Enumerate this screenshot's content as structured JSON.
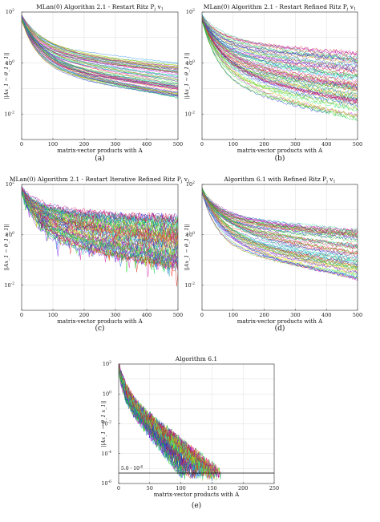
{
  "chart_data": [
    {
      "id": "a",
      "type": "line",
      "title": "MLan(0) Algorithm 2.1 - Restart Ritz P_j v_1",
      "caption": "(a)",
      "xlabel": "matrix-vector products with A",
      "ylabel": "||Ax_1 − θ_1 x_1||",
      "xlim": [
        0,
        500
      ],
      "ylim_log10": [
        -3,
        2
      ],
      "yscale": "log",
      "grid": true,
      "xticks": [
        "0",
        "100",
        "200",
        "300",
        "400",
        "500"
      ],
      "yticks": [
        {
          "exp": 2,
          "label": "10"
        },
        {
          "exp": 0,
          "label": "10"
        },
        {
          "exp": -2,
          "label": "10"
        }
      ],
      "y_start_log10": 1.9,
      "y_end_log10_range": [
        -1.4,
        0.0
      ],
      "noise": 0.02,
      "n_series": 70
    },
    {
      "id": "b",
      "type": "line",
      "title": "MLan(0) Algorithm 2.1 - Restart Refined Ritz P_j v_1",
      "caption": "(b)",
      "xlabel": "matrix-vector products with A",
      "ylabel": "||Ax_1 − θ_1 x_1||",
      "xlim": [
        0,
        500
      ],
      "ylim_log10": [
        -3,
        2
      ],
      "yscale": "log",
      "grid": true,
      "xticks": [
        "0",
        "100",
        "200",
        "300",
        "400",
        "500"
      ],
      "yticks": [
        {
          "exp": 2,
          "label": "10"
        },
        {
          "exp": 0,
          "label": "10"
        },
        {
          "exp": -2,
          "label": "10"
        }
      ],
      "y_start_log10": 1.9,
      "y_end_log10_range": [
        -2.2,
        0.4
      ],
      "noise": 0.07,
      "n_series": 70
    },
    {
      "id": "c",
      "type": "line",
      "title": "MLan(0) Algorithm 2.1 - Restart Iterative Refined Ritz P_j v_1",
      "caption": "(c)",
      "xlabel": "matrix-vector products with A",
      "ylabel": "||Ax_1 − θ_1 x_1||",
      "xlim": [
        0,
        500
      ],
      "ylim_log10": [
        -3,
        2
      ],
      "yscale": "log",
      "grid": true,
      "xticks": [
        "0",
        "100",
        "200",
        "300",
        "400",
        "500"
      ],
      "yticks": [
        {
          "exp": 2,
          "label": "10"
        },
        {
          "exp": 0,
          "label": "10"
        },
        {
          "exp": -2,
          "label": "10"
        }
      ],
      "y_start_log10": 1.9,
      "y_end_log10_range": [
        -1.3,
        0.7
      ],
      "noise": 0.16,
      "n_series": 70
    },
    {
      "id": "d",
      "type": "line",
      "title": "Algorithm 6.1 with Refined Ritz P_j v_1",
      "caption": "(d)",
      "xlabel": "matrix-vector products with A",
      "ylabel": "||Ax_1 − θ_1 x_1||",
      "xlim": [
        0,
        500
      ],
      "ylim_log10": [
        -3,
        2
      ],
      "yscale": "log",
      "grid": true,
      "xticks": [
        "0",
        "100",
        "200",
        "300",
        "400",
        "500"
      ],
      "yticks": [
        {
          "exp": 2,
          "label": "10"
        },
        {
          "exp": 0,
          "label": "10"
        },
        {
          "exp": -2,
          "label": "10"
        }
      ],
      "y_start_log10": 1.9,
      "y_end_log10_range": [
        -1.8,
        0.3
      ],
      "noise": 0.06,
      "n_series": 70
    },
    {
      "id": "e",
      "type": "line",
      "title": "Algorithm 6.1",
      "caption": "(e)",
      "xlabel": "matrix-vector products with A",
      "ylabel": "||Ax_1 − θ_1 x_1||",
      "xlim": [
        0,
        250
      ],
      "ylim_log10": [
        -6,
        2
      ],
      "yscale": "log",
      "grid": true,
      "xticks": [
        "0",
        "50",
        "100",
        "150",
        "200",
        "250"
      ],
      "yticks": [
        {
          "exp": 2,
          "label": "10"
        },
        {
          "exp": 0,
          "label": "10"
        },
        {
          "exp": -2,
          "label": "10"
        },
        {
          "exp": -4,
          "label": "10"
        },
        {
          "exp": -6,
          "label": "10"
        }
      ],
      "threshold": 5e-06,
      "threshold_label": "5.0 · 10",
      "threshold_exp": "-6",
      "end_x_range": [
        100,
        165
      ],
      "n_series": 70
    }
  ]
}
